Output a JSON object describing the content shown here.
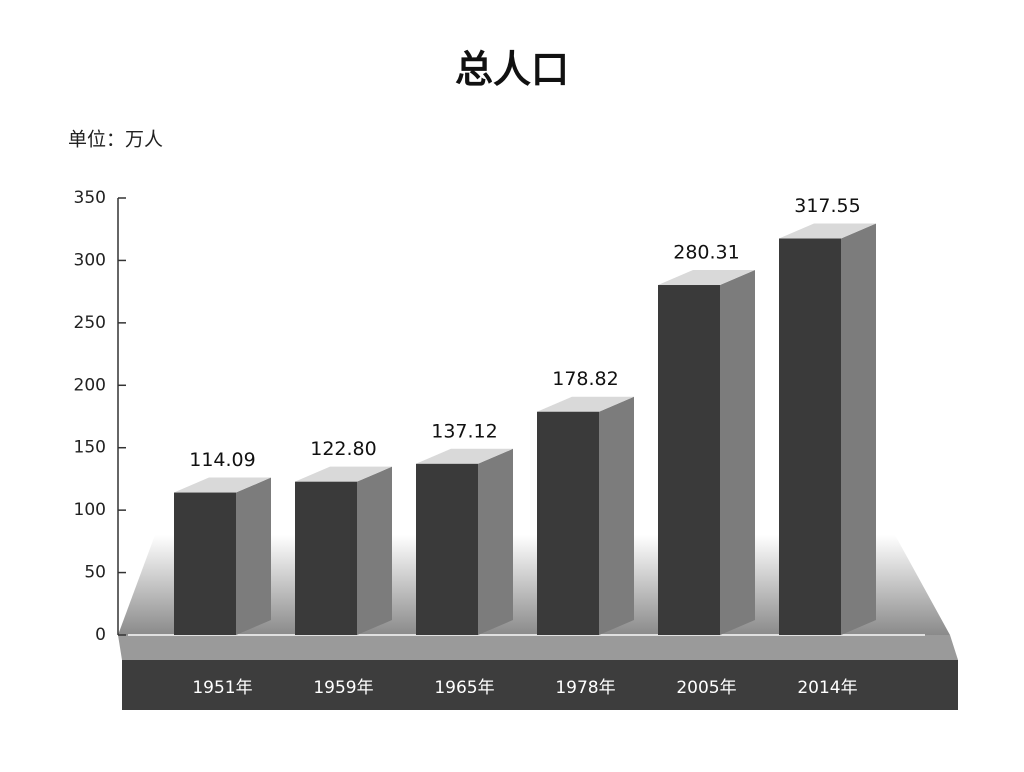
{
  "chart_data": {
    "type": "bar3d",
    "title": "总人口",
    "unit_label": "单位：万人",
    "categories": [
      "1951年",
      "1959年",
      "1965年",
      "1978年",
      "2005年",
      "2014年"
    ],
    "values": [
      114.09,
      122.8,
      137.12,
      178.82,
      280.31,
      317.55
    ],
    "value_labels": [
      "114.09",
      "122.80",
      "137.12",
      "178.82",
      "280.31",
      "317.55"
    ],
    "color": "#3a3a3a",
    "ylim": [
      0,
      350
    ],
    "yticks": [
      0,
      50,
      100,
      150,
      200,
      250,
      300,
      350
    ],
    "grid": false
  }
}
